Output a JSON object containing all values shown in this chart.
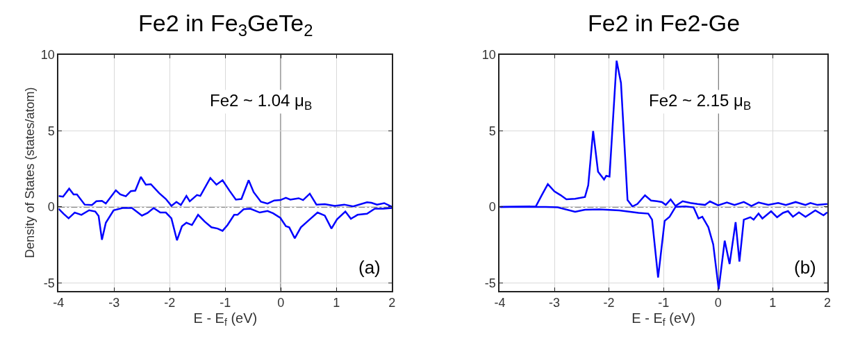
{
  "chart_data": [
    {
      "type": "line",
      "title": "Fe2 in Fe$_{3}$GeTe$_{2}$",
      "xlabel": "E - E$_{f}$ (eV)",
      "ylabel": "Density of States (states/atom)",
      "xlim": [
        -4,
        2
      ],
      "ylim": [
        -5.5,
        10
      ],
      "xticks": [
        -4,
        -3,
        -2,
        -1,
        0,
        1,
        2
      ],
      "yticks": [
        -5,
        0,
        5,
        10
      ],
      "grid": true,
      "line_style": "solid",
      "annotations": [
        "Fe2 ~ 1.04 μ$_{B}$",
        "(a)"
      ],
      "ref_lines": [
        {
          "axis": "y",
          "value": 0,
          "color": "#555555",
          "line_style": "dashed"
        },
        {
          "axis": "x",
          "value": 0,
          "color": "#000000",
          "line_style": "solid"
        }
      ],
      "series": [
        {
          "color": "#0000ff",
          "x": [
            -4,
            -3.92,
            -3.81,
            -3.73,
            -3.67,
            -3.53,
            -3.4,
            -3.32,
            -3.22,
            -3.15,
            -2.97,
            -2.89,
            -2.79,
            -2.7,
            -2.62,
            -2.52,
            -2.43,
            -2.34,
            -2.19,
            -2.07,
            -1.97,
            -1.88,
            -1.8,
            -1.7,
            -1.64,
            -1.51,
            -1.45,
            -1.27,
            -1.16,
            -1.05,
            -0.92,
            -0.81,
            -0.71,
            -0.58,
            -0.49,
            -0.36,
            -0.24,
            -0.12,
            -0.01,
            0.09,
            0.17,
            0.32,
            0.4,
            0.52,
            0.64,
            0.79,
            0.97,
            1.14,
            1.3,
            1.55,
            1.63,
            1.73,
            1.86,
            2
          ],
          "values": [
            0.72,
            0.67,
            1.2,
            0.82,
            0.82,
            0.15,
            0.12,
            0.37,
            0.4,
            0.22,
            1.09,
            0.82,
            0.7,
            1.04,
            1.07,
            1.97,
            1.46,
            1.49,
            0.9,
            0.52,
            0.07,
            0.33,
            0.12,
            0.72,
            0.37,
            0.78,
            0.72,
            1.9,
            1.46,
            1.75,
            1.04,
            0.48,
            0.52,
            1.75,
            0.97,
            0.34,
            0.22,
            0.42,
            0.45,
            0.6,
            0.48,
            0.57,
            0.45,
            0.87,
            0.15,
            0.18,
            0.07,
            0.15,
            0.03,
            0.3,
            0.27,
            0.15,
            0.25,
            0.0
          ]
        },
        {
          "color": "#0000ff",
          "x": [
            -4,
            -3.91,
            -3.82,
            -3.71,
            -3.59,
            -3.45,
            -3.34,
            -3.28,
            -3.22,
            -3.15,
            -3.01,
            -2.85,
            -2.68,
            -2.5,
            -2.4,
            -2.29,
            -2.17,
            -2.07,
            -1.97,
            -1.87,
            -1.78,
            -1.7,
            -1.6,
            -1.49,
            -1.37,
            -1.25,
            -1.14,
            -1.05,
            -0.96,
            -0.84,
            -0.78,
            -0.67,
            -0.55,
            -0.38,
            -0.24,
            -0.14,
            -0.01,
            0.09,
            0.15,
            0.25,
            0.36,
            0.52,
            0.66,
            0.79,
            0.91,
            1.01,
            1.16,
            1.26,
            1.38,
            1.55,
            1.69,
            1.84,
            2
          ],
          "values": [
            -0.12,
            -0.45,
            -0.75,
            -0.37,
            -0.52,
            -0.22,
            -0.3,
            -0.6,
            -2.16,
            -1.04,
            -0.22,
            -0.07,
            -0.07,
            -0.57,
            -0.4,
            -0.07,
            -0.37,
            -0.37,
            -0.75,
            -2.19,
            -1.27,
            -1.04,
            -1.19,
            -0.52,
            -0.97,
            -1.34,
            -1.42,
            -1.57,
            -1.19,
            -0.52,
            -0.52,
            -0.15,
            -0.12,
            -0.37,
            -0.27,
            -0.42,
            -0.72,
            -1.27,
            -1.34,
            -2.06,
            -1.34,
            -0.82,
            -0.37,
            -0.57,
            -1.42,
            -0.82,
            -0.3,
            -0.78,
            -0.52,
            -0.45,
            -0.12,
            -0.12,
            -0.07
          ]
        }
      ]
    },
    {
      "type": "line",
      "title": "Fe2 in Fe2-Ge",
      "xlabel": "E - E$_{f}$ (eV)",
      "xlim": [
        -4,
        2
      ],
      "ylim": [
        -5.5,
        10
      ],
      "xticks": [
        -4,
        -3,
        -2,
        -1,
        0,
        1,
        2
      ],
      "yticks": [
        -5,
        0,
        5,
        10
      ],
      "grid": true,
      "line_style": "solid",
      "annotations": [
        "Fe2 ~ 2.15 μ$_{B}$",
        "(b)"
      ],
      "ref_lines": [
        {
          "axis": "y",
          "value": 0,
          "color": "#555555",
          "line_style": "dashed"
        },
        {
          "axis": "x",
          "value": 0,
          "color": "#000000",
          "line_style": "solid"
        }
      ],
      "series": [
        {
          "color": "#0000ff",
          "x": [
            -4,
            -3.34,
            -3.23,
            -3.12,
            -3.0,
            -2.89,
            -2.78,
            -2.62,
            -2.44,
            -2.38,
            -2.29,
            -2.2,
            -2.09,
            -2.05,
            -1.99,
            -1.86,
            -1.78,
            -1.7,
            -1.66,
            -1.57,
            -1.48,
            -1.34,
            -1.23,
            -1.12,
            -1.03,
            -0.96,
            -0.87,
            -0.78,
            -0.65,
            -0.51,
            -0.38,
            -0.24,
            -0.15,
            0,
            0.16,
            0.3,
            0.47,
            0.61,
            0.74,
            0.92,
            1.1,
            1.24,
            1.42,
            1.6,
            1.69,
            1.82,
            2
          ],
          "values": [
            0,
            0.03,
            0.78,
            1.5,
            1.02,
            0.78,
            0.5,
            0.53,
            0.65,
            1.42,
            4.98,
            2.31,
            1.8,
            2.04,
            1.99,
            9.6,
            8.14,
            3.04,
            0.45,
            0.03,
            0.19,
            0.76,
            0.42,
            0.37,
            0.32,
            0.13,
            0.49,
            0.06,
            0.37,
            0.26,
            0.19,
            0.13,
            0.36,
            0.1,
            0.29,
            0.13,
            0.32,
            0.06,
            0.29,
            0.13,
            0.26,
            0.13,
            0.32,
            0.13,
            0.26,
            0.13,
            0.19
          ]
        },
        {
          "color": "#0000ff",
          "x": [
            -4,
            -3.16,
            -2.94,
            -2.62,
            -2.44,
            -2.17,
            -1.81,
            -1.46,
            -1.28,
            -1.21,
            -1.1,
            -0.98,
            -0.89,
            -0.78,
            -0.6,
            -0.45,
            -0.36,
            -0.29,
            -0.18,
            -0.09,
            0.01,
            0.12,
            0.21,
            0.32,
            0.39,
            0.47,
            0.59,
            0.65,
            0.74,
            0.81,
            0.97,
            1.08,
            1.19,
            1.28,
            1.37,
            1.48,
            1.6,
            1.78,
            1.93,
            2
          ],
          "values": [
            0,
            0,
            -0.03,
            -0.32,
            -0.19,
            -0.16,
            -0.23,
            -0.39,
            -0.44,
            -0.84,
            -4.64,
            -0.92,
            -0.65,
            0,
            0.03,
            -0.03,
            -0.76,
            -0.65,
            -1.33,
            -2.46,
            -5.4,
            -2.22,
            -3.75,
            -1.0,
            -3.59,
            -0.84,
            -0.68,
            -0.84,
            -0.44,
            -0.76,
            -0.29,
            -0.68,
            -0.39,
            -0.28,
            -0.65,
            -0.36,
            -0.65,
            -0.23,
            -0.55,
            -0.36
          ]
        }
      ]
    }
  ]
}
